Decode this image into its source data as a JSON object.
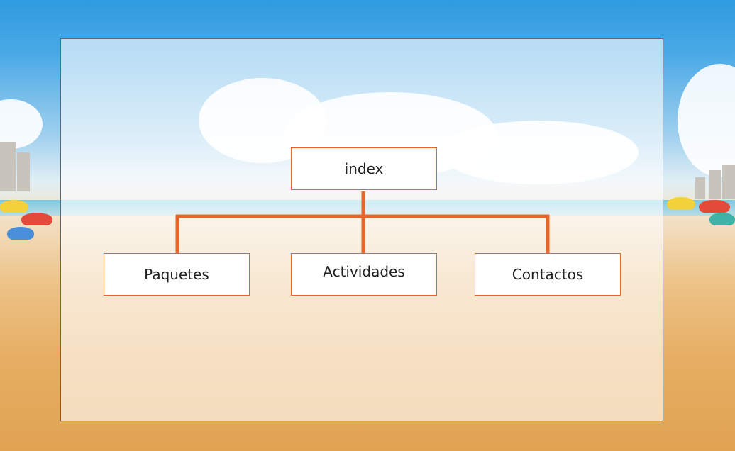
{
  "sitemap": {
    "root": "index",
    "children": [
      "Paquetes",
      "Actividades",
      "Contactos"
    ]
  },
  "colors": {
    "connector": "#e8662a",
    "node_border": "#e8662a",
    "panel_border": "#5e6470"
  }
}
